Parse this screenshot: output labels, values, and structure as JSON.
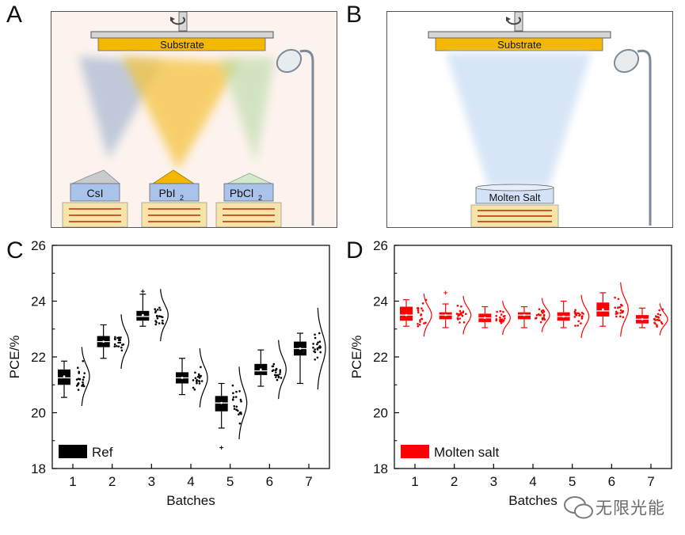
{
  "panels": {
    "a": "A",
    "b": "B",
    "c": "C",
    "d": "D"
  },
  "scene_a": {
    "substrate": "Substrate",
    "sources": [
      "CsI",
      "PbI",
      "PbCl"
    ],
    "subscript": "2"
  },
  "scene_b": {
    "substrate": "Substrate",
    "source": "Molten Salt"
  },
  "colors": {
    "ref": "#000000",
    "molten": "#ff0000",
    "substrate": "#f5b800",
    "crucible": "#a9c3ea",
    "heater": "#f8e3a8",
    "coil": "#c85a2a"
  },
  "chart_data": [
    {
      "type": "box",
      "xlabel": "Batches",
      "ylabel": "PCE/%",
      "ylim": [
        18,
        26
      ],
      "yticks": [
        "18",
        "20",
        "22",
        "24",
        "26"
      ],
      "categories": [
        "1",
        "2",
        "3",
        "4",
        "5",
        "6",
        "7"
      ],
      "legend": "Ref",
      "legend_position": "bottom-left",
      "color": "#000000",
      "boxes": [
        {
          "min": 20.55,
          "q1": 21.0,
          "median": 21.25,
          "q3": 21.55,
          "max": 21.85,
          "mean": 21.3
        },
        {
          "min": 21.95,
          "q1": 22.35,
          "median": 22.55,
          "q3": 22.75,
          "max": 23.15,
          "mean": 22.55
        },
        {
          "min": 23.1,
          "q1": 23.3,
          "median": 23.45,
          "q3": 23.65,
          "max": 24.25,
          "mean": 23.5
        },
        {
          "min": 20.65,
          "q1": 21.05,
          "median": 21.25,
          "q3": 21.45,
          "max": 21.95,
          "mean": 21.25
        },
        {
          "min": 19.45,
          "q1": 20.05,
          "median": 20.35,
          "q3": 20.6,
          "max": 21.05,
          "mean": 20.35
        },
        {
          "min": 20.95,
          "q1": 21.35,
          "median": 21.5,
          "q3": 21.75,
          "max": 22.25,
          "mean": 21.55
        },
        {
          "min": 21.05,
          "q1": 22.05,
          "median": 22.3,
          "q3": 22.55,
          "max": 22.85,
          "mean": 22.3
        }
      ],
      "outliers": [
        {
          "batch": 3,
          "value": 24.35
        },
        {
          "batch": 5,
          "value": 18.75
        }
      ]
    },
    {
      "type": "box",
      "xlabel": "Batches",
      "ylabel": "PCE/%",
      "ylim": [
        18,
        26
      ],
      "yticks": [
        "18",
        "20",
        "22",
        "24",
        "26"
      ],
      "categories": [
        "1",
        "2",
        "3",
        "4",
        "5",
        "6",
        "7"
      ],
      "legend": "Molten salt",
      "legend_position": "bottom-left",
      "color": "#ff0000",
      "boxes": [
        {
          "min": 23.1,
          "q1": 23.3,
          "median": 23.5,
          "q3": 23.8,
          "max": 24.05,
          "mean": 23.5
        },
        {
          "min": 23.05,
          "q1": 23.35,
          "median": 23.5,
          "q3": 23.6,
          "max": 23.9,
          "mean": 23.5
        },
        {
          "min": 23.05,
          "q1": 23.25,
          "median": 23.4,
          "q3": 23.55,
          "max": 23.8,
          "mean": 23.4
        },
        {
          "min": 23.05,
          "q1": 23.35,
          "median": 23.5,
          "q3": 23.6,
          "max": 23.8,
          "mean": 23.5
        },
        {
          "min": 23.05,
          "q1": 23.3,
          "median": 23.45,
          "q3": 23.6,
          "max": 24.0,
          "mean": 23.45
        },
        {
          "min": 23.1,
          "q1": 23.45,
          "median": 23.65,
          "q3": 23.95,
          "max": 24.3,
          "mean": 23.7
        },
        {
          "min": 23.05,
          "q1": 23.2,
          "median": 23.35,
          "q3": 23.5,
          "max": 23.75,
          "mean": 23.35
        }
      ],
      "outliers": [
        {
          "batch": 2,
          "value": 24.3
        }
      ]
    }
  ],
  "watermark": "无限光能"
}
